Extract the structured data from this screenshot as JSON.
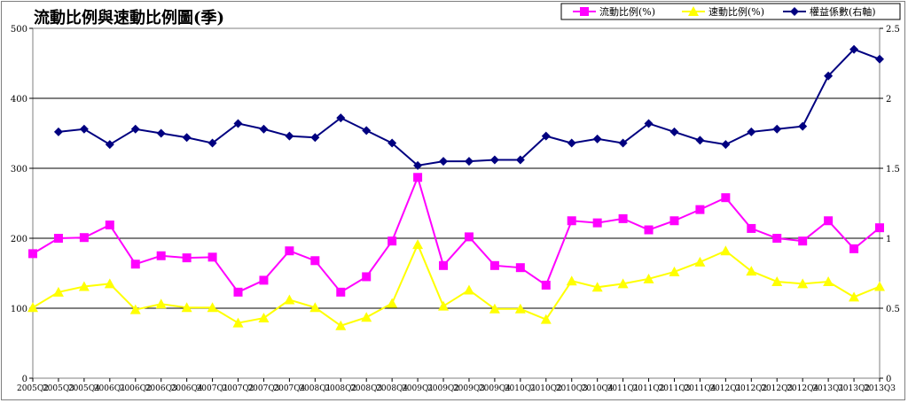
{
  "chart_data": {
    "type": "line",
    "title": "流動比例與速動比例圖(季)",
    "x": [
      "2005Q2",
      "2005Q3",
      "2005Q4",
      "2006Q1",
      "2006Q2",
      "2006Q3",
      "2006Q4",
      "2007Q1",
      "2007Q2",
      "2007Q3",
      "2007Q4",
      "2008Q1",
      "2008Q2",
      "2008Q3",
      "2008Q4",
      "2009Q1",
      "2009Q2",
      "2009Q3",
      "2009Q4",
      "2010Q1",
      "2010Q2",
      "2010Q3",
      "2010Q4",
      "2011Q1",
      "2011Q2",
      "2011Q3",
      "2011Q4",
      "2012Q1",
      "2012Q2",
      "2012Q3",
      "2012Q4",
      "2013Q1",
      "2013Q2",
      "2013Q3"
    ],
    "y_left": {
      "ylim": [
        0,
        500
      ],
      "ticks": [
        "0",
        "100",
        "200",
        "300",
        "400",
        "500"
      ]
    },
    "y_right": {
      "ylim": [
        0,
        2.5
      ],
      "ticks": [
        "0",
        "0.5",
        "1",
        "1.5",
        "2",
        "2.5"
      ]
    },
    "grid": true,
    "legend_position": "top-right",
    "series": [
      {
        "name": "流動比例(%)",
        "axis": "left",
        "color": "#ff00ff",
        "marker": "square",
        "values": [
          178,
          200,
          201,
          219,
          163,
          175,
          172,
          173,
          123,
          140,
          182,
          168,
          123,
          145,
          196,
          287,
          161,
          202,
          161,
          158,
          133,
          225,
          222,
          228,
          212,
          225,
          241,
          258,
          214,
          200,
          196,
          225,
          185,
          215
        ]
      },
      {
        "name": "速動比例(%)",
        "axis": "left",
        "color": "#ffff00",
        "marker": "triangle",
        "values": [
          101,
          123,
          131,
          135,
          98,
          106,
          101,
          101,
          79,
          86,
          112,
          101,
          75,
          87,
          107,
          191,
          103,
          126,
          99,
          99,
          84,
          139,
          130,
          135,
          142,
          152,
          166,
          182,
          153,
          138,
          135,
          138,
          116,
          131
        ]
      },
      {
        "name": "權益係數(右軸)",
        "axis": "right",
        "color": "#000080",
        "marker": "diamond",
        "values": [
          null,
          1.76,
          1.78,
          1.67,
          1.78,
          1.75,
          1.72,
          1.68,
          1.82,
          1.78,
          1.73,
          1.72,
          1.86,
          1.77,
          1.68,
          1.52,
          1.55,
          1.55,
          1.56,
          1.56,
          1.73,
          1.68,
          1.71,
          1.68,
          1.82,
          1.76,
          1.7,
          1.67,
          1.76,
          1.78,
          1.8,
          2.16,
          2.35,
          2.28
        ]
      }
    ]
  }
}
